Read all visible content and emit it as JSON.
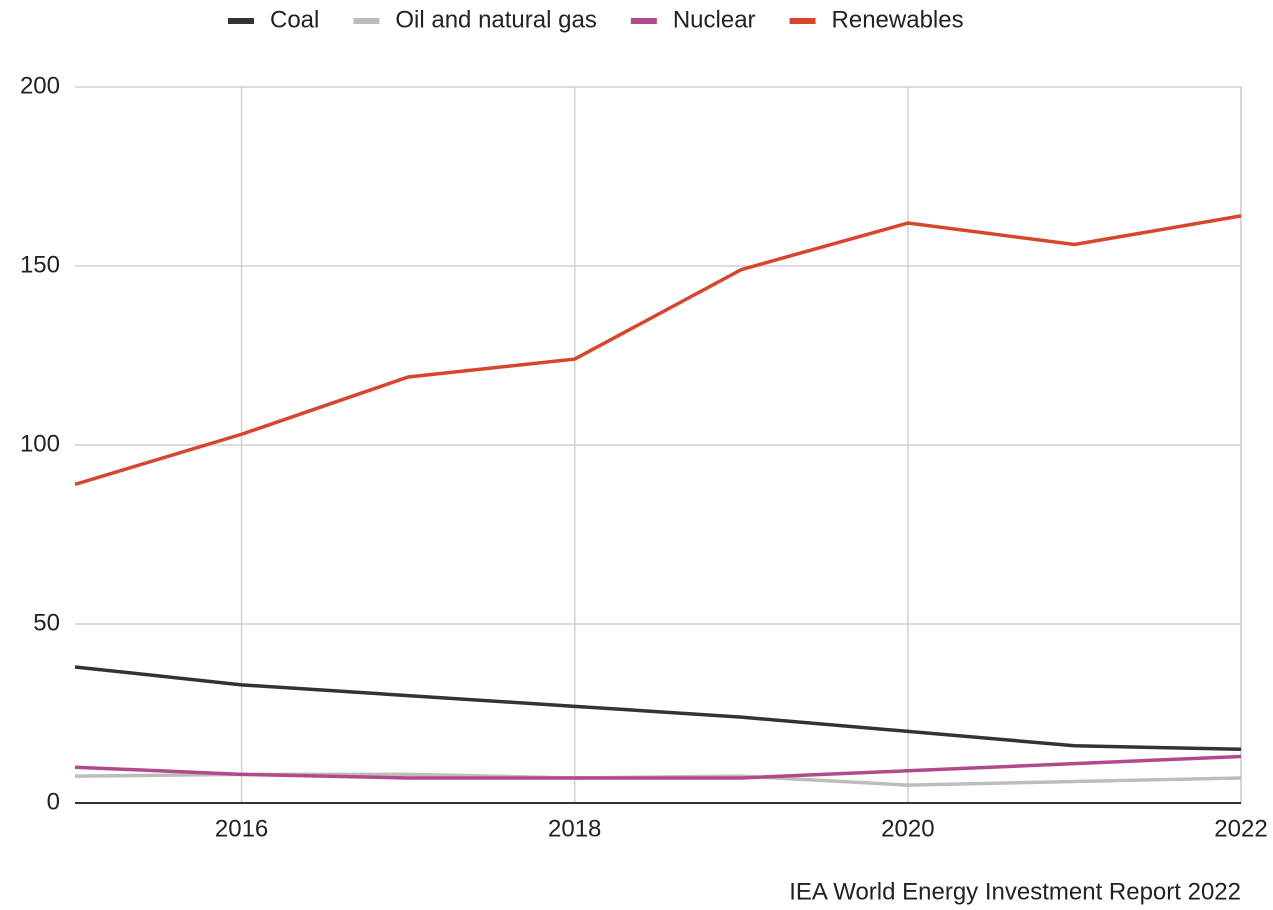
{
  "chart_data": {
    "type": "line",
    "x": [
      2015,
      2016,
      2017,
      2018,
      2019,
      2020,
      2021,
      2022
    ],
    "series": [
      {
        "name": "Coal",
        "color": "#333333",
        "values": [
          38,
          33,
          30,
          27,
          24,
          20,
          16,
          15
        ]
      },
      {
        "name": "Oil and natural gas",
        "color": "#bdbdbd",
        "values": [
          7.5,
          8,
          8,
          7,
          7.5,
          5,
          6,
          7
        ]
      },
      {
        "name": "Nuclear",
        "color": "#b04a8c",
        "values": [
          10,
          8,
          7,
          7,
          7,
          9,
          11,
          13
        ]
      },
      {
        "name": "Renewables",
        "color": "#d9452b",
        "values": [
          89,
          103,
          119,
          124,
          149,
          162,
          156,
          164
        ]
      }
    ],
    "xlim": [
      2015,
      2022
    ],
    "xticks": [
      2016,
      2018,
      2020,
      2022
    ],
    "ylim": [
      0,
      200
    ],
    "yticks": [
      0,
      50,
      100,
      150,
      200
    ],
    "grid": true,
    "legend": "top",
    "source": "IEA World Energy Investment Report 2022"
  }
}
